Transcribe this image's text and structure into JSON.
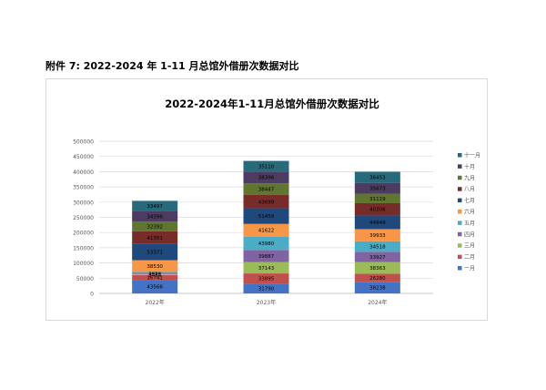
{
  "caption": "附件 7: 2022-2024 年 1-11 月总馆外借册次数据对比",
  "colors": {
    "一月": "#4472c4",
    "二月": "#c0504d",
    "三月": "#9bbb59",
    "四月": "#8064a2",
    "五月": "#4bacc6",
    "六月": "#f79646",
    "七月": "#1f497d",
    "八月": "#772c2a",
    "九月": "#5f7530",
    "十月": "#4d3b62",
    "十一月": "#276a7c"
  },
  "chart_data": {
    "type": "bar",
    "stacked": true,
    "title": "2022-2024年1-11月总馆外借册次数据对比",
    "categories": [
      "2022年",
      "2023年",
      "2024年"
    ],
    "ylim": [
      0,
      500000
    ],
    "yticks": [
      "0",
      "50000",
      "100000",
      "150000",
      "200000",
      "250000",
      "300000",
      "350000",
      "400000",
      "450000",
      "500000"
    ],
    "grid": true,
    "legend": "right",
    "series": [
      {
        "name": "一月",
        "values": [
          43566,
          31790,
          38238
        ]
      },
      {
        "name": "二月",
        "values": [
          16741,
          33895,
          26280
        ]
      },
      {
        "name": "三月",
        "values": [
          3454,
          37143,
          38363
        ]
      },
      {
        "name": "四月",
        "values": [
          3454,
          39887,
          33927
        ]
      },
      {
        "name": "五月",
        "values": [
          3454,
          43980,
          34518
        ]
      },
      {
        "name": "六月",
        "values": [
          38530,
          41622,
          39933
        ]
      },
      {
        "name": "七月",
        "values": [
          53371,
          51459,
          44949
        ]
      },
      {
        "name": "八月",
        "values": [
          41351,
          43699,
          40306
        ]
      },
      {
        "name": "九月",
        "values": [
          32392,
          38447,
          31119
        ]
      },
      {
        "name": "十月",
        "values": [
          34396,
          38396,
          35673
        ]
      },
      {
        "name": "十一月",
        "values": [
          33497,
          35110,
          36453
        ]
      }
    ]
  }
}
